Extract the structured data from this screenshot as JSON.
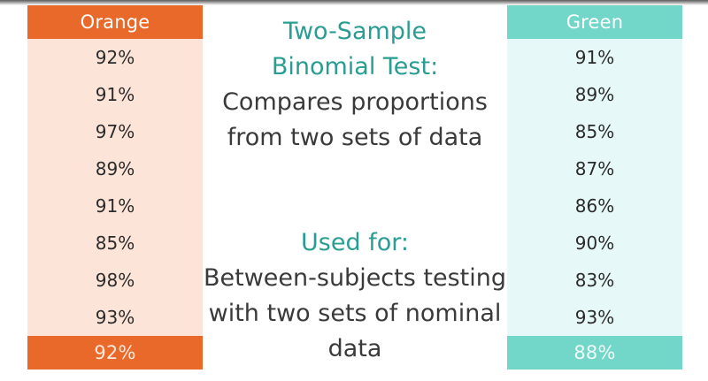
{
  "orange": {
    "header": "Orange",
    "values": [
      "92%",
      "91%",
      "97%",
      "89%",
      "91%",
      "85%",
      "98%",
      "93%"
    ],
    "footer": "92%"
  },
  "green": {
    "header": "Green",
    "values": [
      "91%",
      "89%",
      "85%",
      "87%",
      "86%",
      "90%",
      "83%",
      "93%"
    ],
    "footer": "88%"
  },
  "center": {
    "top": {
      "heading_line1": "Two-Sample",
      "heading_line2": "Binomial Test:",
      "desc_line1": "Compares proportions",
      "desc_line2": "from two sets of data"
    },
    "bottom": {
      "heading": "Used for:",
      "desc_line1": "Between-subjects testing",
      "desc_line2": "with two sets of nominal",
      "desc_line3": "data"
    }
  },
  "colors": {
    "orange": "#e8692a",
    "orange_light": "#fde4d8",
    "green": "#72d6c9",
    "green_light": "#e6f8f7",
    "teal_text": "#2a9d93"
  }
}
